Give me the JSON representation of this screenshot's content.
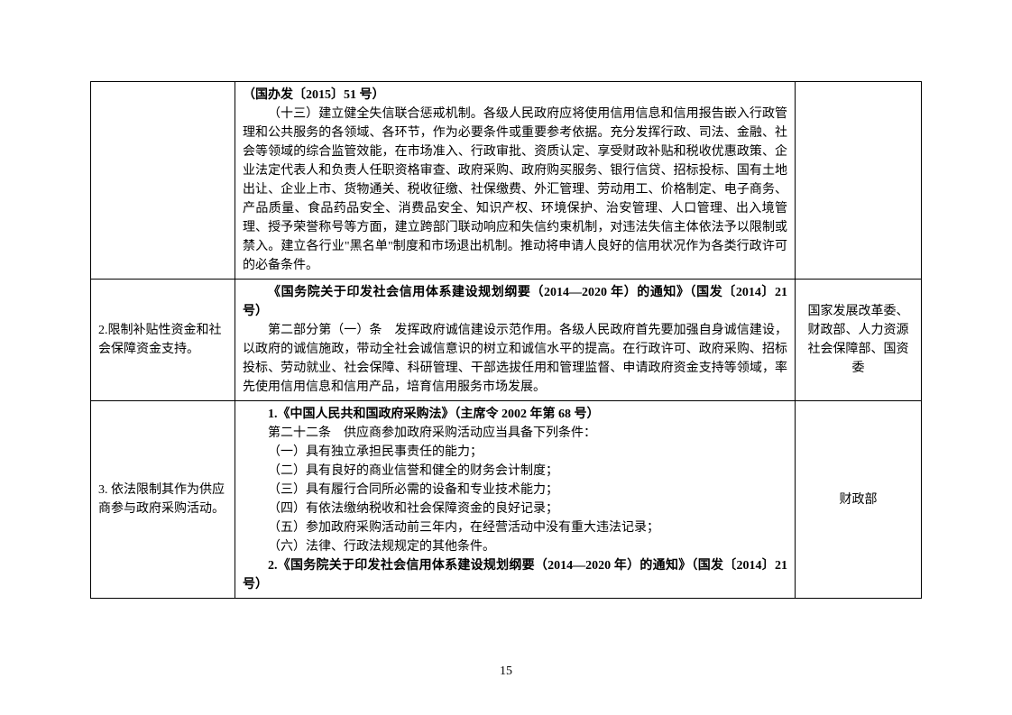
{
  "rows": [
    {
      "col1": "",
      "col2": [
        {
          "text": "（国办发〔2015〕51 号）",
          "bold": true,
          "indent": false
        },
        {
          "text": "（十三）建立健全失信联合惩戒机制。各级人民政府应将使用信用信息和信用报告嵌入行政管理和公共服务的各领域、各环节，作为必要条件或重要参考依据。充分发挥行政、司法、金融、社会等领域的综合监管效能，在市场准入、行政审批、资质认定、享受财政补贴和税收优惠政策、企业法定代表人和负责人任职资格审查、政府采购、政府购买服务、银行信贷、招标投标、国有土地出让、企业上市、货物通关、税收征缴、社保缴费、外汇管理、劳动用工、价格制定、电子商务、产品质量、食品药品安全、消费品安全、知识产权、环境保护、治安管理、人口管理、出入境管理、授予荣誉称号等方面，建立跨部门联动响应和失信约束机制，对违法失信主体依法予以限制或禁入。建立各行业\"黑名单\"制度和市场退出机制。推动将申请人良好的信用状况作为各类行政许可的必备条件。",
          "bold": false,
          "indent": true
        }
      ],
      "col3": ""
    },
    {
      "col1": "2.限制补贴性资金和社会保障资金支持。",
      "col2": [
        {
          "text": "《国务院关于印发社会信用体系建设规划纲要（2014—2020 年）的通知》（国发〔2014〕21 号）",
          "bold": true,
          "indent": true
        },
        {
          "text": "第二部分第（一）条　发挥政府诚信建设示范作用。各级人民政府首先要加强自身诚信建设，以政府的诚信施政，带动全社会诚信意识的树立和诚信水平的提高。在行政许可、政府采购、招标投标、劳动就业、社会保障、科研管理、干部选拔任用和管理监督、申请政府资金支持等领域，率先使用信用信息和信用产品，培育信用服务市场发展。",
          "bold": false,
          "indent": true
        }
      ],
      "col3": "国家发展改革委、财政部、人力资源社会保障部、国资委"
    },
    {
      "col1": "3. 依法限制其作为供应商参与政府采购活动。",
      "col2": [
        {
          "text": "1.《中国人民共和国政府采购法》（主席令 2002 年第 68 号）",
          "bold": true,
          "indent": true
        },
        {
          "text": "第二十二条　供应商参加政府采购活动应当具备下列条件：",
          "bold": false,
          "indent": true
        },
        {
          "text": "（一）具有独立承担民事责任的能力；",
          "bold": false,
          "indent": true
        },
        {
          "text": "（二）具有良好的商业信誉和健全的财务会计制度；",
          "bold": false,
          "indent": true
        },
        {
          "text": "（三）具有履行合同所必需的设备和专业技术能力；",
          "bold": false,
          "indent": true
        },
        {
          "text": "（四）有依法缴纳税收和社会保障资金的良好记录；",
          "bold": false,
          "indent": true
        },
        {
          "text": "（五）参加政府采购活动前三年内，在经营活动中没有重大违法记录；",
          "bold": false,
          "indent": true
        },
        {
          "text": "（六）法律、行政法规规定的其他条件。",
          "bold": false,
          "indent": true
        },
        {
          "text": "2.《国务院关于印发社会信用体系建设规划纲要（2014—2020 年）的通知》（国发〔2014〕21 号）",
          "bold": true,
          "indent": true
        }
      ],
      "col3": "财政部"
    }
  ],
  "page_number": "15"
}
